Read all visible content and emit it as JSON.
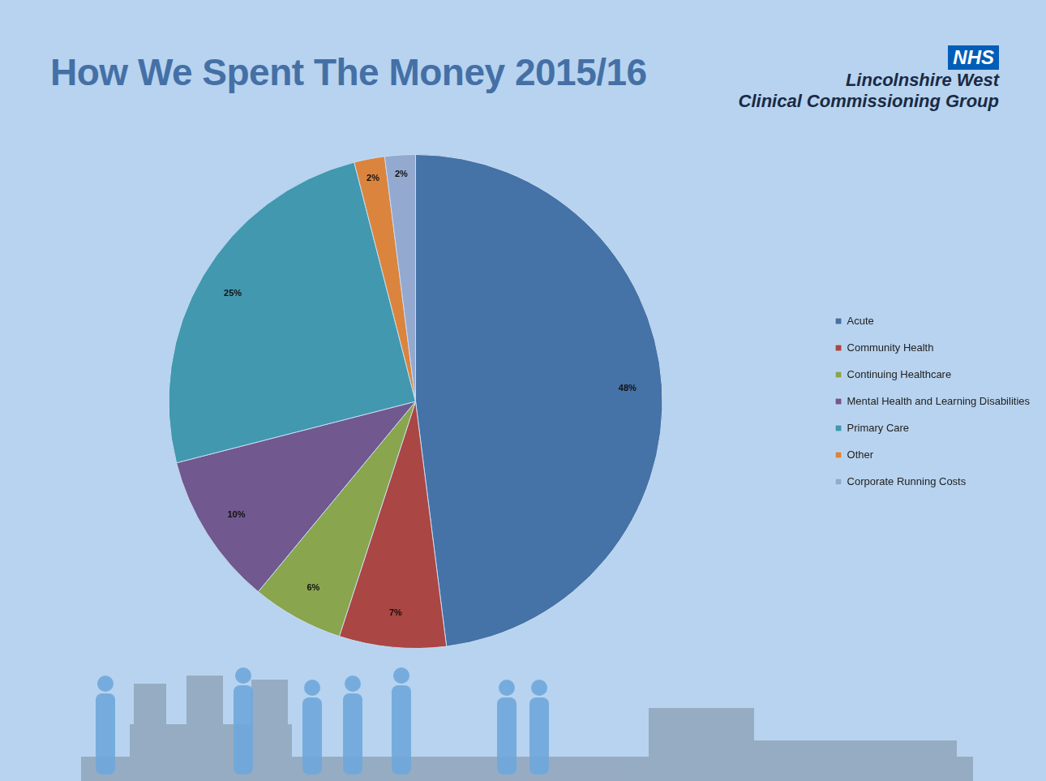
{
  "header": {
    "logo": "NHS",
    "organisation": [
      "Lincolnshire West",
      "Clinical Commissioning Group"
    ]
  },
  "chart_data": {
    "type": "pie",
    "title": "How We Spent The Money 2015/16",
    "categories": [
      "Acute",
      "Community Health",
      "Continuing Healthcare",
      "Mental Health and Learning Disabilities",
      "Primary Care",
      "Other",
      "Corporate Running Costs"
    ],
    "values": [
      48,
      7,
      6,
      10,
      25,
      2,
      2
    ],
    "value_labels": [
      "48%",
      "7%",
      "6%",
      "10%",
      "25%",
      "2%",
      "2%"
    ],
    "colors": [
      "#4572a7",
      "#aa4643",
      "#89a54e",
      "#71588f",
      "#4198af",
      "#db843d",
      "#93a9cf"
    ],
    "data_labels": true,
    "legend": "right"
  }
}
